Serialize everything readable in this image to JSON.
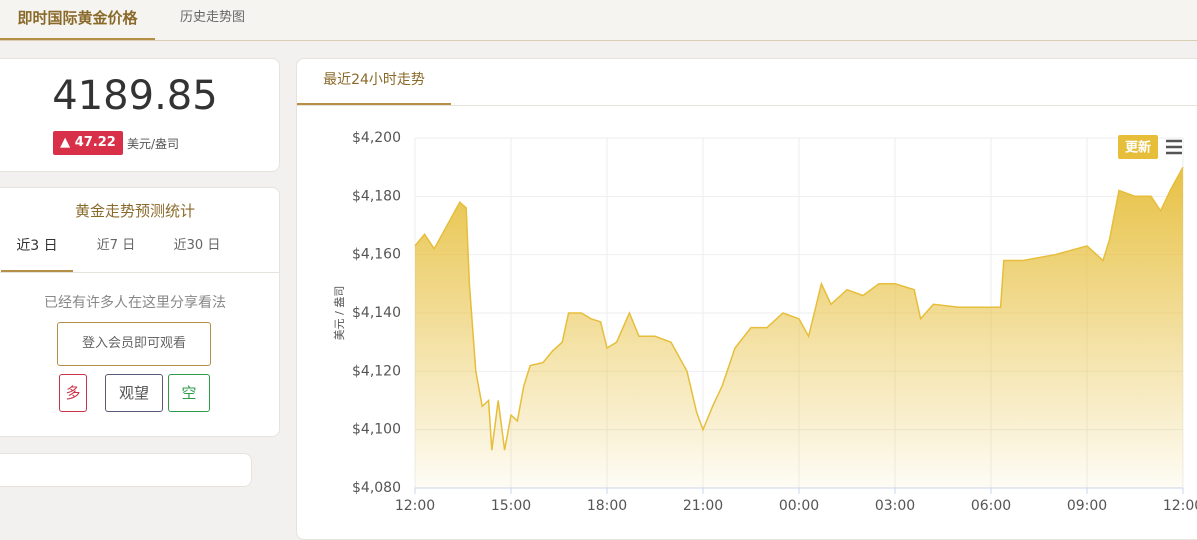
{
  "tabs": [
    "即时国际黄金价格",
    "历史走势图"
  ],
  "price": {
    "value": "4189.85",
    "change": "▲ 47.22",
    "unit": "美元/盎司"
  },
  "forecast": {
    "title": "黄金走势预测统计",
    "tabs": [
      "近3 日",
      "近7 日",
      "近30 日"
    ],
    "message": "已经有许多人在这里分享看法",
    "login": "登入会员即可观看",
    "buttons": [
      "多",
      "观望",
      "空"
    ]
  },
  "chart_panel": {
    "tab": "最近24小时走势",
    "update_button": "更新"
  },
  "chart_data": {
    "type": "area",
    "y_label": "美元 / 盎司",
    "color": "#e6be3a",
    "grid": true,
    "x": [
      0,
      0.3,
      0.6,
      1.0,
      1.4,
      1.6,
      1.7,
      1.9,
      2.1,
      2.3,
      2.4,
      2.6,
      2.8,
      3.0,
      3.2,
      3.4,
      3.6,
      4.0,
      4.3,
      4.6,
      4.8,
      5.2,
      5.5,
      5.8,
      6.0,
      6.3,
      6.7,
      7.0,
      7.5,
      8.0,
      8.5,
      8.8,
      9.0,
      9.3,
      9.6,
      10.0,
      10.5,
      11.0,
      11.5,
      12.0,
      12.3,
      12.7,
      13.0,
      13.5,
      14.0,
      14.5,
      15.0,
      15.6,
      15.8,
      16.2,
      17.0,
      18.0,
      18.3,
      18.4,
      19.0,
      20.0,
      21.0,
      21.5,
      21.7,
      22.0,
      22.5,
      23.0,
      23.3,
      23.6,
      24.0
    ],
    "values": [
      4163,
      4167,
      4162,
      4170,
      4178,
      4176,
      4150,
      4120,
      4108,
      4110,
      4093,
      4110,
      4093,
      4105,
      4103,
      4115,
      4122,
      4123,
      4127,
      4130,
      4140,
      4140,
      4138,
      4137,
      4128,
      4130,
      4140,
      4132,
      4132,
      4130,
      4120,
      4106,
      4100,
      4108,
      4115,
      4128,
      4135,
      4135,
      4140,
      4138,
      4132,
      4150,
      4143,
      4148,
      4146,
      4150,
      4150,
      4148,
      4138,
      4143,
      4142,
      4142,
      4142,
      4158,
      4158,
      4160,
      4163,
      4158,
      4165,
      4182,
      4180,
      4180,
      4175,
      4182,
      4190
    ],
    "xlim": [
      0,
      24
    ],
    "xticks": [
      {
        "value": 0,
        "label": "12:00"
      },
      {
        "value": 3,
        "label": "15:00"
      },
      {
        "value": 6,
        "label": "18:00"
      },
      {
        "value": 9,
        "label": "21:00"
      },
      {
        "value": 12,
        "label": "00:00"
      },
      {
        "value": 15,
        "label": "03:00"
      },
      {
        "value": 18,
        "label": "06:00"
      },
      {
        "value": 21,
        "label": "09:00"
      },
      {
        "value": 24,
        "label": "12:00"
      }
    ],
    "ylim": [
      4080,
      4200
    ],
    "yticks": [
      {
        "value": 4080,
        "label": "$4,080"
      },
      {
        "value": 4100,
        "label": "$4,100"
      },
      {
        "value": 4120,
        "label": "$4,120"
      },
      {
        "value": 4140,
        "label": "$4,140"
      },
      {
        "value": 4160,
        "label": "$4,160"
      },
      {
        "value": 4180,
        "label": "$4,180"
      },
      {
        "value": 4200,
        "label": "$4,200"
      }
    ]
  }
}
